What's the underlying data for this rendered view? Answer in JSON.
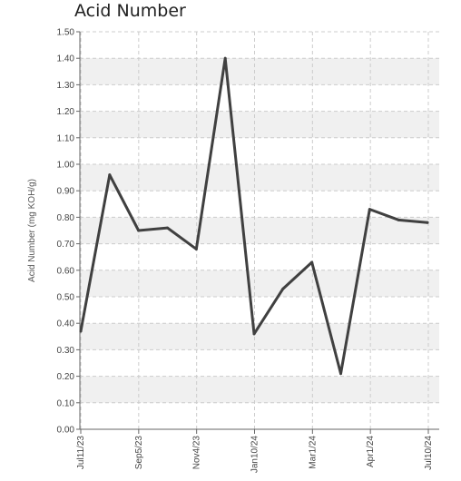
{
  "chart_data": {
    "type": "line",
    "title": "Acid Number",
    "ylabel": "Acid Number (mg KOH/g)",
    "xlabel": "",
    "ylim": [
      0,
      1.5
    ],
    "yticks": [
      "0.00",
      "0.10",
      "0.20",
      "0.30",
      "0.40",
      "0.50",
      "0.60",
      "0.70",
      "0.80",
      "0.90",
      "1.00",
      "1.10",
      "1.20",
      "1.30",
      "1.40",
      "1.50"
    ],
    "xtick_labels": [
      "Jul11/23",
      "Sep5/23",
      "Nov4/23",
      "Jan10/24",
      "Mar1/24",
      "Apr1/24",
      "Jul10/24"
    ],
    "grid": true,
    "series": [
      {
        "values": [
          0.37,
          0.96,
          0.75,
          0.76,
          0.68,
          1.4,
          0.36,
          0.53,
          0.63,
          0.21,
          0.83,
          0.79,
          0.78
        ]
      }
    ],
    "colors": {
      "line": "#404040",
      "band": "#f0f0f0",
      "grid": "#cccccc"
    }
  }
}
